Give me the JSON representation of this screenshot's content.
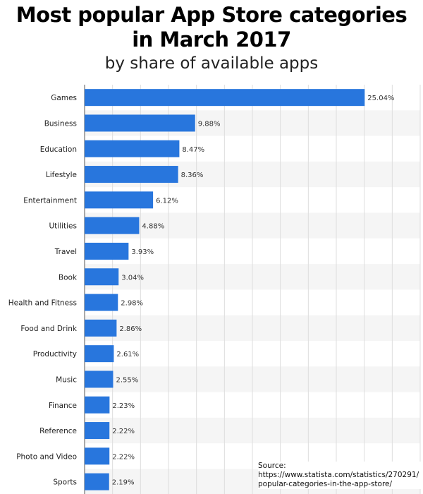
{
  "header": {
    "title_line1": "Most popular App Store categories",
    "title_line2": "in March 2017",
    "subtitle": "by share of available apps"
  },
  "source": {
    "label": "Source:",
    "line1": "https://www.statista.com/statistics/270291/",
    "line2": "popular-categories-in-the-app-store/"
  },
  "colors": {
    "bar": "#2876dd",
    "stripe": "#f5f5f5",
    "grid": "#dddddd",
    "axis": "#555555"
  },
  "chart_data": {
    "type": "bar",
    "orientation": "horizontal",
    "title": "Most popular App Store categories in March 2017",
    "subtitle": "by share of available apps",
    "categories": [
      "Games",
      "Business",
      "Education",
      "Lifestyle",
      "Entertainment",
      "Utilities",
      "Travel",
      "Book",
      "Health and Fitness",
      "Food and Drink",
      "Productivity",
      "Music",
      "Finance",
      "Reference",
      "Photo and Video",
      "Sports"
    ],
    "values": [
      25.04,
      9.88,
      8.47,
      8.36,
      6.12,
      4.88,
      3.93,
      3.04,
      2.98,
      2.86,
      2.61,
      2.55,
      2.23,
      2.22,
      2.22,
      2.19
    ],
    "value_labels": [
      "25.04%",
      "9.88%",
      "8.47%",
      "8.36%",
      "6.12%",
      "4.88%",
      "3.93%",
      "3.04%",
      "2.98%",
      "2.86%",
      "2.61%",
      "2.55%",
      "2.23%",
      "2.22%",
      "2.22%",
      "2.19%"
    ],
    "xlim": [
      0,
      30
    ],
    "grid": true,
    "legend": "none"
  }
}
